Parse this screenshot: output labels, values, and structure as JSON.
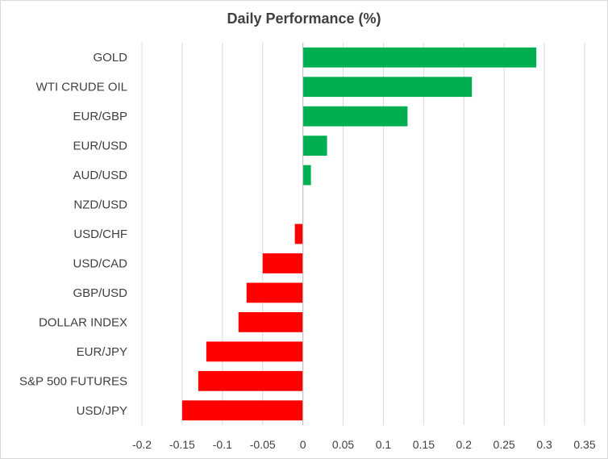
{
  "chart_data": {
    "type": "bar",
    "orientation": "horizontal",
    "title": "Daily Performance (%)",
    "xlabel": "",
    "ylabel": "",
    "categories": [
      "GOLD",
      "WTI CRUDE OIL",
      "EUR/GBP",
      "EUR/USD",
      "AUD/USD",
      "NZD/USD",
      "USD/CHF",
      "USD/CAD",
      "GBP/USD",
      "DOLLAR INDEX",
      "EUR/JPY",
      "S&P 500 FUTURES",
      "USD/JPY"
    ],
    "values": [
      0.29,
      0.21,
      0.13,
      0.03,
      0.01,
      0.0,
      -0.01,
      -0.05,
      -0.07,
      -0.08,
      -0.12,
      -0.13,
      -0.15
    ],
    "xlim": [
      -0.2,
      0.35
    ],
    "xticks": [
      -0.2,
      -0.15,
      -0.1,
      -0.05,
      0,
      0.05,
      0.1,
      0.15,
      0.2,
      0.25,
      0.3,
      0.35
    ],
    "xtick_labels": [
      "-0.2",
      "-0.15",
      "-0.1",
      "-0.05",
      "0",
      "0.05",
      "0.1",
      "0.15",
      "0.2",
      "0.25",
      "0.3",
      "0.35"
    ],
    "grid": "vertical",
    "legend": "none",
    "colors": {
      "positive": "#00b050",
      "negative": "#ff0000",
      "grid": "#d9d9d9",
      "text": "#404040"
    }
  }
}
